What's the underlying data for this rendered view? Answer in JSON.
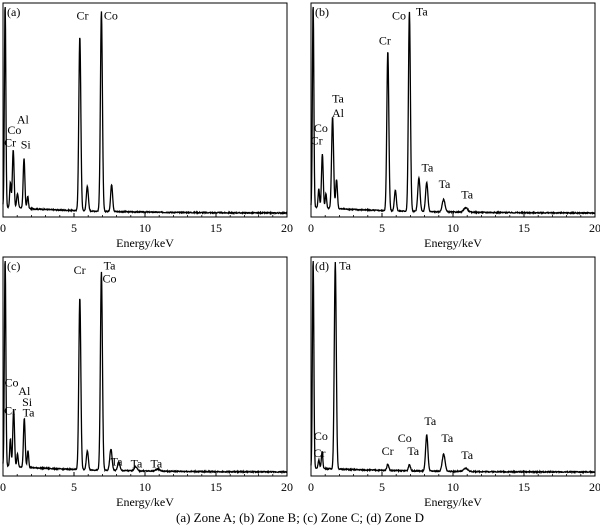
{
  "caption": "(a) Zone A; (b) Zone B; (c) Zone C; (d) Zone D",
  "chart_data": [
    {
      "type": "line",
      "panel_label": "(a)",
      "xlabel": "Energy/keV",
      "xlim": [
        0,
        20
      ],
      "x_ticks": [
        "0",
        "5",
        "10",
        "15",
        "20"
      ],
      "x_tick_values": [
        0,
        5,
        10,
        15,
        20
      ],
      "ylim": [
        0,
        100
      ],
      "y_ticks": [],
      "baseline": 3,
      "peaks": [
        {
          "x": 0.15,
          "y": 100,
          "w": 0.05
        },
        {
          "x": 0.52,
          "y": 12,
          "w": 0.05
        },
        {
          "x": 0.72,
          "y": 28,
          "w": 0.06
        },
        {
          "x": 1.02,
          "y": 7,
          "w": 0.06
        },
        {
          "x": 1.48,
          "y": 24,
          "w": 0.06
        },
        {
          "x": 1.74,
          "y": 6,
          "w": 0.05
        },
        {
          "x": 5.41,
          "y": 84,
          "w": 0.07
        },
        {
          "x": 5.94,
          "y": 12,
          "w": 0.07
        },
        {
          "x": 6.93,
          "y": 96,
          "w": 0.07
        },
        {
          "x": 7.65,
          "y": 13,
          "w": 0.07
        }
      ],
      "annotations": [
        {
          "text": "Cr",
          "x": 5.6,
          "y": 94
        },
        {
          "text": "Co",
          "x": 7.6,
          "y": 94
        },
        {
          "text": "Al",
          "x": 1.4,
          "y": 44
        },
        {
          "text": "Co",
          "x": 0.8,
          "y": 39
        },
        {
          "text": "Si",
          "x": 1.6,
          "y": 32
        },
        {
          "text": "Cr",
          "x": 0.5,
          "y": 33
        }
      ]
    },
    {
      "type": "line",
      "panel_label": "(b)",
      "xlabel": "Energy/keV",
      "xlim": [
        0,
        20
      ],
      "x_ticks": [
        "0",
        "5",
        "10",
        "15",
        "20"
      ],
      "x_tick_values": [
        0,
        5,
        10,
        15,
        20
      ],
      "ylim": [
        0,
        100
      ],
      "y_ticks": [],
      "baseline": 3,
      "peaks": [
        {
          "x": 0.15,
          "y": 100,
          "w": 0.05
        },
        {
          "x": 0.55,
          "y": 9,
          "w": 0.05
        },
        {
          "x": 0.8,
          "y": 26,
          "w": 0.06
        },
        {
          "x": 1.05,
          "y": 7,
          "w": 0.05
        },
        {
          "x": 1.52,
          "y": 44,
          "w": 0.07
        },
        {
          "x": 1.8,
          "y": 14,
          "w": 0.06
        },
        {
          "x": 5.41,
          "y": 77,
          "w": 0.07
        },
        {
          "x": 5.94,
          "y": 10,
          "w": 0.07
        },
        {
          "x": 6.93,
          "y": 96,
          "w": 0.07
        },
        {
          "x": 7.6,
          "y": 16,
          "w": 0.08
        },
        {
          "x": 8.15,
          "y": 14,
          "w": 0.08
        },
        {
          "x": 9.34,
          "y": 6,
          "w": 0.1
        },
        {
          "x": 10.9,
          "y": 2.2,
          "w": 0.14
        }
      ],
      "annotations": [
        {
          "text": "Co",
          "x": 6.2,
          "y": 94
        },
        {
          "text": "Ta",
          "x": 7.8,
          "y": 96
        },
        {
          "text": "Cr",
          "x": 5.2,
          "y": 82
        },
        {
          "text": "Ta",
          "x": 1.9,
          "y": 54
        },
        {
          "text": "Al",
          "x": 1.9,
          "y": 47
        },
        {
          "text": "Co",
          "x": 0.7,
          "y": 40
        },
        {
          "text": "Cr",
          "x": 0.4,
          "y": 34
        },
        {
          "text": "Ta",
          "x": 8.2,
          "y": 21
        },
        {
          "text": "Ta",
          "x": 9.4,
          "y": 13
        },
        {
          "text": "Ta",
          "x": 11.0,
          "y": 8
        }
      ]
    },
    {
      "type": "line",
      "panel_label": "(c)",
      "xlabel": "Energy/keV",
      "xlim": [
        0,
        20
      ],
      "x_ticks": [
        "0",
        "5",
        "10",
        "15",
        "20"
      ],
      "x_tick_values": [
        0,
        5,
        10,
        15,
        20
      ],
      "ylim": [
        0,
        100
      ],
      "y_ticks": [],
      "baseline": 3,
      "peaks": [
        {
          "x": 0.15,
          "y": 100,
          "w": 0.05
        },
        {
          "x": 0.52,
          "y": 13,
          "w": 0.05
        },
        {
          "x": 0.75,
          "y": 27,
          "w": 0.06
        },
        {
          "x": 1.02,
          "y": 6,
          "w": 0.05
        },
        {
          "x": 1.5,
          "y": 23,
          "w": 0.06
        },
        {
          "x": 1.76,
          "y": 8,
          "w": 0.05
        },
        {
          "x": 5.41,
          "y": 81,
          "w": 0.07
        },
        {
          "x": 5.94,
          "y": 9,
          "w": 0.07
        },
        {
          "x": 6.93,
          "y": 93,
          "w": 0.07
        },
        {
          "x": 7.6,
          "y": 10,
          "w": 0.08
        },
        {
          "x": 8.15,
          "y": 4,
          "w": 0.08
        },
        {
          "x": 9.34,
          "y": 2,
          "w": 0.1
        },
        {
          "x": 10.9,
          "y": 1,
          "w": 0.14
        }
      ],
      "annotations": [
        {
          "text": "Cr",
          "x": 5.4,
          "y": 94
        },
        {
          "text": "Ta",
          "x": 7.5,
          "y": 96
        },
        {
          "text": "Co",
          "x": 7.5,
          "y": 90
        },
        {
          "text": "Co",
          "x": 0.6,
          "y": 41
        },
        {
          "text": "Al",
          "x": 1.5,
          "y": 37
        },
        {
          "text": "Si",
          "x": 1.7,
          "y": 32
        },
        {
          "text": "Ta",
          "x": 1.8,
          "y": 27
        },
        {
          "text": "Cr",
          "x": 0.5,
          "y": 28
        },
        {
          "text": "Ta",
          "x": 8.0,
          "y": 4
        },
        {
          "text": "Ta",
          "x": 9.4,
          "y": 3
        },
        {
          "text": "Ta",
          "x": 10.8,
          "y": 3
        }
      ]
    },
    {
      "type": "line",
      "panel_label": "(d)",
      "xlabel": "Energy/keV",
      "xlim": [
        0,
        20
      ],
      "x_ticks": [
        "0",
        "5",
        "10",
        "15",
        "20"
      ],
      "x_tick_values": [
        0,
        5,
        10,
        15,
        20
      ],
      "ylim": [
        0,
        100
      ],
      "y_ticks": [],
      "baseline": 2,
      "peaks": [
        {
          "x": 0.15,
          "y": 100,
          "w": 0.05
        },
        {
          "x": 0.55,
          "y": 4,
          "w": 0.05
        },
        {
          "x": 0.78,
          "y": 8,
          "w": 0.05
        },
        {
          "x": 1.71,
          "y": 97,
          "w": 0.07
        },
        {
          "x": 5.41,
          "y": 3,
          "w": 0.07
        },
        {
          "x": 6.93,
          "y": 3,
          "w": 0.07
        },
        {
          "x": 8.15,
          "y": 17,
          "w": 0.08
        },
        {
          "x": 9.34,
          "y": 8,
          "w": 0.1
        },
        {
          "x": 10.9,
          "y": 1.5,
          "w": 0.14
        }
      ],
      "annotations": [
        {
          "text": "Ta",
          "x": 2.4,
          "y": 96
        },
        {
          "text": "Co",
          "x": 0.7,
          "y": 16
        },
        {
          "text": "Cr",
          "x": 0.6,
          "y": 8
        },
        {
          "text": "Ta",
          "x": 8.4,
          "y": 23
        },
        {
          "text": "Co",
          "x": 6.6,
          "y": 15
        },
        {
          "text": "Ta",
          "x": 9.6,
          "y": 15
        },
        {
          "text": "Cr",
          "x": 5.4,
          "y": 9
        },
        {
          "text": "Ta",
          "x": 7.2,
          "y": 9
        },
        {
          "text": "Ta",
          "x": 11.0,
          "y": 7
        }
      ]
    }
  ]
}
